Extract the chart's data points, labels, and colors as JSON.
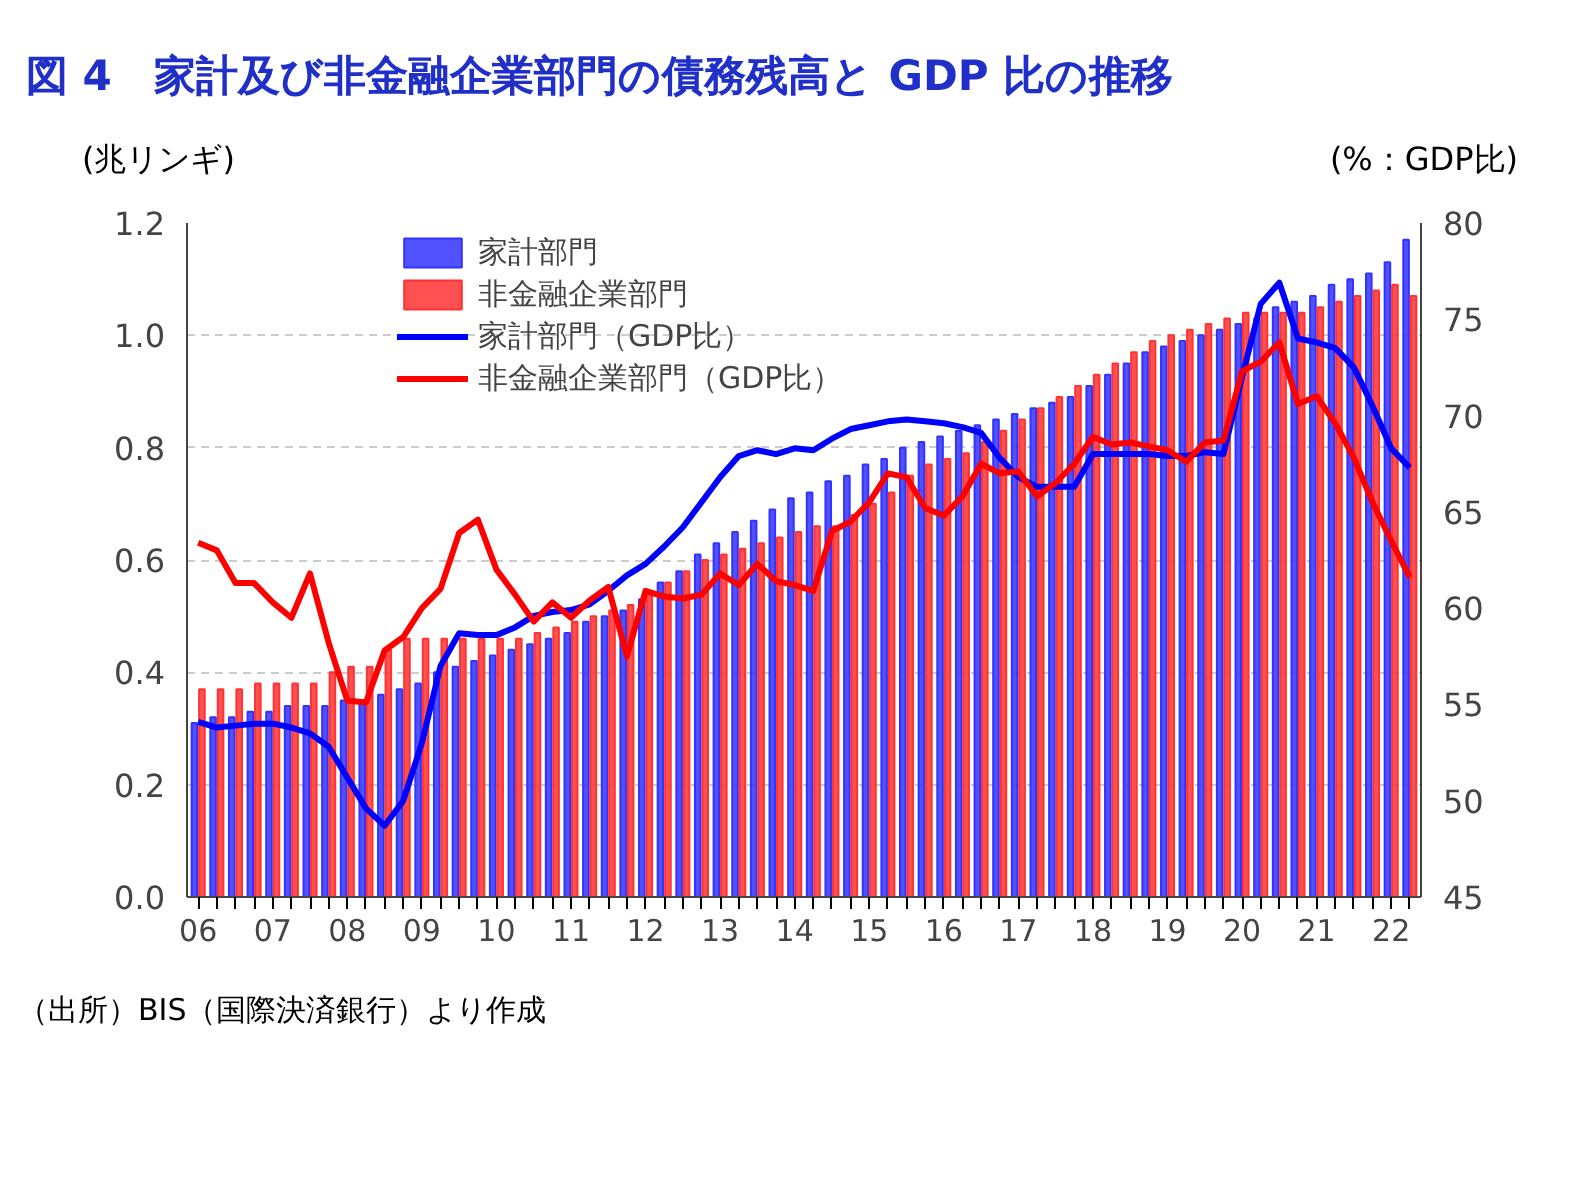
{
  "chart_data": {
    "type": "bar",
    "title": "図 4　家計及び非金融企業部門の債務残高と GDP 比の推移",
    "ylabel": "(兆リンギ)",
    "y2label": "(%：GDP比)",
    "annotations": [
      "（出所）BIS（国際決済銀行）より作成"
    ],
    "categories": [
      "06",
      null,
      null,
      null,
      "07",
      null,
      null,
      null,
      "08",
      null,
      null,
      null,
      "09",
      null,
      null,
      null,
      "10",
      null,
      null,
      null,
      "11",
      null,
      null,
      null,
      "12",
      null,
      null,
      null,
      "13",
      null,
      null,
      null,
      "14",
      null,
      null,
      null,
      "15",
      null,
      null,
      null,
      "16",
      null,
      null,
      null,
      "17",
      null,
      null,
      null,
      "18",
      null,
      null,
      null,
      "19",
      null,
      null,
      null,
      "20",
      null,
      null,
      null,
      "21",
      null,
      null,
      null,
      "22",
      null
    ],
    "ylim": [
      0,
      1.2
    ],
    "yticks": [
      {
        "value": 0,
        "label": "0.0"
      },
      0.2,
      0.4,
      0.6,
      0.8,
      {
        "value": 1,
        "label": "1.0"
      },
      1.2
    ],
    "y2lim": [
      45,
      80
    ],
    "y2ticks": [
      45,
      50,
      55,
      60,
      65,
      70,
      75,
      80
    ],
    "grid": "y",
    "legend": "top left",
    "series": [
      {
        "name": "家計部門",
        "color": "#3333ff",
        "values": [
          0.31,
          0.32,
          0.32,
          0.33,
          0.33,
          0.34,
          0.34,
          0.34,
          0.35,
          0.35,
          0.36,
          0.37,
          0.38,
          0.4,
          0.41,
          0.42,
          0.43,
          0.44,
          0.45,
          0.46,
          0.47,
          0.49,
          0.5,
          0.51,
          0.53,
          0.56,
          0.58,
          0.61,
          0.63,
          0.65,
          0.67,
          0.69,
          0.71,
          0.72,
          0.74,
          0.75,
          0.77,
          0.78,
          0.8,
          0.81,
          0.82,
          0.83,
          0.84,
          0.85,
          0.86,
          0.87,
          0.88,
          0.89,
          0.91,
          0.93,
          0.95,
          0.97,
          0.98,
          0.99,
          1.0,
          1.01,
          1.02,
          1.03,
          1.05,
          1.06,
          1.07,
          1.09,
          1.1,
          1.11,
          1.13,
          1.17
        ]
      },
      {
        "name": "非金融企業部門",
        "color": "#ff3333",
        "values": [
          0.37,
          0.37,
          0.37,
          0.38,
          0.38,
          0.38,
          0.38,
          0.4,
          0.41,
          0.41,
          0.44,
          0.46,
          0.46,
          0.46,
          0.46,
          0.46,
          0.46,
          0.46,
          0.47,
          0.48,
          0.49,
          0.5,
          0.51,
          0.52,
          0.54,
          0.56,
          0.58,
          0.6,
          0.61,
          0.62,
          0.63,
          0.64,
          0.65,
          0.66,
          0.66,
          0.68,
          0.7,
          0.72,
          0.75,
          0.77,
          0.78,
          0.79,
          0.81,
          0.83,
          0.85,
          0.87,
          0.89,
          0.91,
          0.93,
          0.95,
          0.97,
          0.99,
          1.0,
          1.01,
          1.02,
          1.03,
          1.04,
          1.04,
          1.04,
          1.04,
          1.05,
          1.06,
          1.07,
          1.08,
          1.09,
          1.07
        ]
      },
      {
        "name": "家計部門（GDP比）",
        "type": "line",
        "axis": "y2",
        "color": "#0000ff",
        "values": [
          54.1,
          53.8,
          53.9,
          54.0,
          54.0,
          53.8,
          53.5,
          52.8,
          51.2,
          49.6,
          48.7,
          50.0,
          53.0,
          57.0,
          58.7,
          58.6,
          58.6,
          59.0,
          59.6,
          59.8,
          59.9,
          60.2,
          60.9,
          61.7,
          62.3,
          63.2,
          64.2,
          65.5,
          66.8,
          67.9,
          68.2,
          68.0,
          68.3,
          68.2,
          68.8,
          69.3,
          69.5,
          69.7,
          69.8,
          69.7,
          69.6,
          69.4,
          69.1,
          67.8,
          66.8,
          66.3,
          66.3,
          66.3,
          68.0,
          68.0,
          68.0,
          68.0,
          67.9,
          67.9,
          68.1,
          68.0,
          72.0,
          75.8,
          76.9,
          74.0,
          73.8,
          73.5,
          72.5,
          70.5,
          68.3,
          67.3
        ]
      },
      {
        "name": "非金融企業部門（GDP比）",
        "type": "line",
        "axis": "y2",
        "color": "#ff0000",
        "values": [
          63.4,
          63.0,
          61.3,
          61.3,
          60.3,
          59.5,
          61.8,
          58.2,
          55.2,
          55.1,
          57.8,
          58.5,
          60.0,
          61.0,
          63.9,
          64.6,
          62.0,
          60.7,
          59.3,
          60.3,
          59.5,
          60.4,
          61.1,
          57.5,
          60.9,
          60.6,
          60.5,
          60.7,
          61.8,
          61.2,
          62.3,
          61.4,
          61.2,
          60.9,
          64.0,
          64.5,
          65.5,
          67.0,
          66.8,
          65.2,
          64.8,
          65.8,
          67.5,
          67.0,
          67.1,
          65.8,
          66.5,
          67.5,
          68.9,
          68.5,
          68.6,
          68.4,
          68.2,
          67.6,
          68.6,
          68.7,
          72.3,
          72.8,
          73.8,
          70.6,
          71.0,
          69.6,
          67.8,
          65.5,
          63.5,
          61.6
        ]
      }
    ]
  }
}
